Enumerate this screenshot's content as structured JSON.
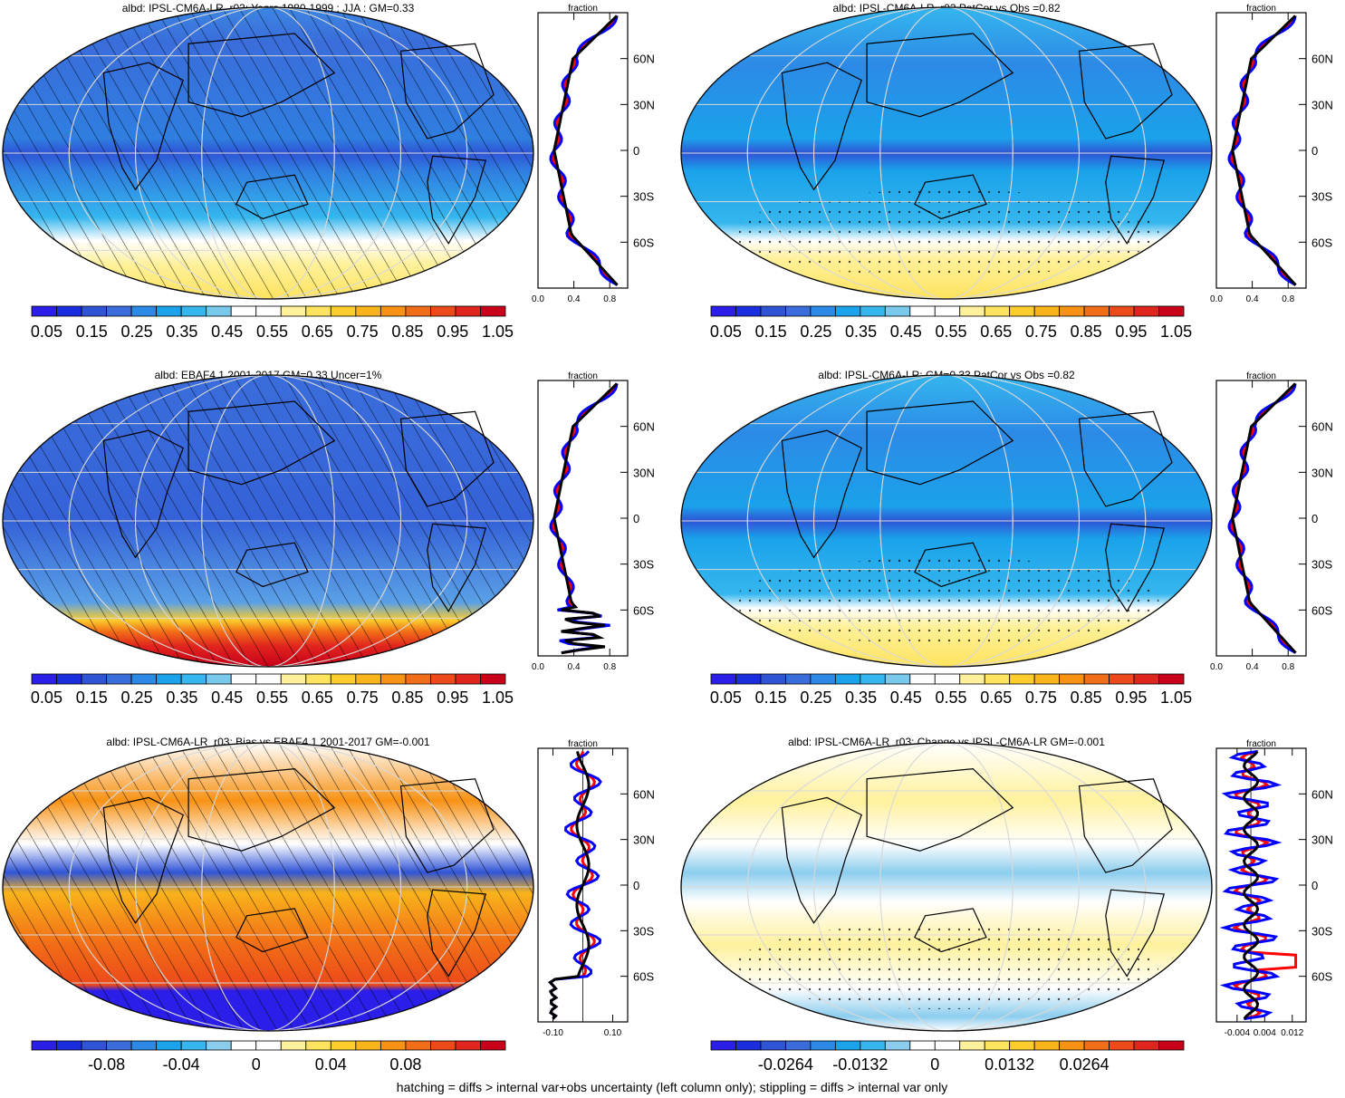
{
  "caption": "hatching = diffs > internal var+obs uncertainty (left column only); stippling = diffs > internal var only",
  "colors": {
    "scale": [
      "#2a1ee8",
      "#1a2ee0",
      "#2f54d6",
      "#3a6ddb",
      "#2c8ae6",
      "#1aa2ea",
      "#35b6ee",
      "#79c9ec",
      "#ffffff",
      "#ffffff",
      "#fff19c",
      "#fde35e",
      "#fccd2c",
      "#f9b31b",
      "#f79215",
      "#f26d17",
      "#ec4a1a",
      "#e0241e",
      "#c8001a"
    ],
    "diff": [
      "#2a1ee8",
      "#1a2ee0",
      "#2f54d6",
      "#3a6ddb",
      "#2c8ae6",
      "#1aa2ea",
      "#35b6ee",
      "#8ccdee",
      "#ffffff",
      "#ffffff",
      "#fff19c",
      "#fde35e",
      "#fccd2c",
      "#f9b31b",
      "#f79215",
      "#f26d17",
      "#ec4a1a",
      "#e0241e",
      "#c8001a"
    ],
    "model": "#000000",
    "obs": "#ff0000",
    "other": "#0000ff"
  },
  "chart_data": [
    {
      "type": "heatmap",
      "title": "albd: IPSL-CM6A-LR_r03: Years 1980-1999 : JJA : GM=0.33",
      "colorbar_labels": [
        "0.05",
        "0.15",
        "0.25",
        "0.35",
        "0.45",
        "0.55",
        "0.65",
        "0.75",
        "0.85",
        "0.95",
        "1.05"
      ],
      "overlay": "hatching",
      "profile": {
        "type": "line",
        "xlabel": "fraction",
        "x_ticks": [
          "0.0",
          "0.4",
          "0.8"
        ],
        "xlim": [
          0,
          1
        ],
        "y_ticks": [
          "60N",
          "30N",
          "0",
          "30S",
          "60S"
        ],
        "ylim": [
          -90,
          90
        ]
      }
    },
    {
      "type": "heatmap",
      "title": "albd: IPSL-CM6A-LR_r03 PatCor vs Obs =0.82",
      "colorbar_labels": [
        "0.05",
        "0.15",
        "0.25",
        "0.35",
        "0.45",
        "0.55",
        "0.65",
        "0.75",
        "0.85",
        "0.95",
        "1.05"
      ],
      "overlay": "stippling",
      "profile": {
        "type": "line",
        "xlabel": "fraction",
        "x_ticks": [
          "0.0",
          "0.4",
          "0.8"
        ],
        "xlim": [
          0,
          1
        ],
        "y_ticks": [
          "60N",
          "30N",
          "0",
          "30S",
          "60S"
        ],
        "ylim": [
          -90,
          90
        ]
      }
    },
    {
      "type": "heatmap",
      "title": "albd: EBAF4.1 2001-2017 GM=0.33 Uncer=1%",
      "colorbar_labels": [
        "0.05",
        "0.15",
        "0.25",
        "0.35",
        "0.45",
        "0.55",
        "0.65",
        "0.75",
        "0.85",
        "0.95",
        "1.05"
      ],
      "overlay": "hatching",
      "profile": {
        "type": "line",
        "xlabel": "fraction",
        "x_ticks": [
          "0.0",
          "0.4",
          "0.8"
        ],
        "xlim": [
          0,
          1
        ],
        "y_ticks": [
          "60N",
          "30N",
          "0",
          "30S",
          "60S"
        ],
        "ylim": [
          -90,
          90
        ]
      }
    },
    {
      "type": "heatmap",
      "title": "albd: IPSL-CM6A-LR: GM=0.33 PatCor vs Obs =0.82",
      "colorbar_labels": [
        "0.05",
        "0.15",
        "0.25",
        "0.35",
        "0.45",
        "0.55",
        "0.65",
        "0.75",
        "0.85",
        "0.95",
        "1.05"
      ],
      "overlay": "stippling",
      "profile": {
        "type": "line",
        "xlabel": "fraction",
        "x_ticks": [
          "0.0",
          "0.4",
          "0.8"
        ],
        "xlim": [
          0,
          1
        ],
        "y_ticks": [
          "60N",
          "30N",
          "0",
          "30S",
          "60S"
        ],
        "ylim": [
          -90,
          90
        ]
      }
    },
    {
      "type": "heatmap",
      "title": "albd: IPSL-CM6A-LR_r03: Bias vs EBAF4.1 2001-2017 GM=-0.001",
      "colorbar_labels": [
        "-0.08",
        "-0.04",
        "0",
        "0.04",
        "0.08"
      ],
      "overlay": "hatching",
      "profile": {
        "type": "line",
        "xlabel": "fraction",
        "x_ticks": [
          "-0.10",
          "0.10"
        ],
        "xlim": [
          -0.15,
          0.15
        ],
        "y_ticks": [
          "60N",
          "30N",
          "0",
          "30S",
          "60S"
        ],
        "ylim": [
          -90,
          90
        ]
      }
    },
    {
      "type": "heatmap",
      "title": "albd: IPSL-CM6A-LR_r03: Change vs IPSL-CM6A-LR GM=-0.001",
      "colorbar_labels": [
        "-0.0264",
        "-0.0132",
        "0",
        "0.0132",
        "0.0264"
      ],
      "overlay": "stippling",
      "profile": {
        "type": "line",
        "xlabel": "fraction",
        "x_ticks": [
          "-0.004",
          "0.004",
          "0.012"
        ],
        "xlim": [
          -0.01,
          0.016
        ],
        "y_ticks": [
          "60N",
          "30N",
          "0",
          "30S",
          "60S"
        ],
        "ylim": [
          -90,
          90
        ]
      }
    }
  ]
}
